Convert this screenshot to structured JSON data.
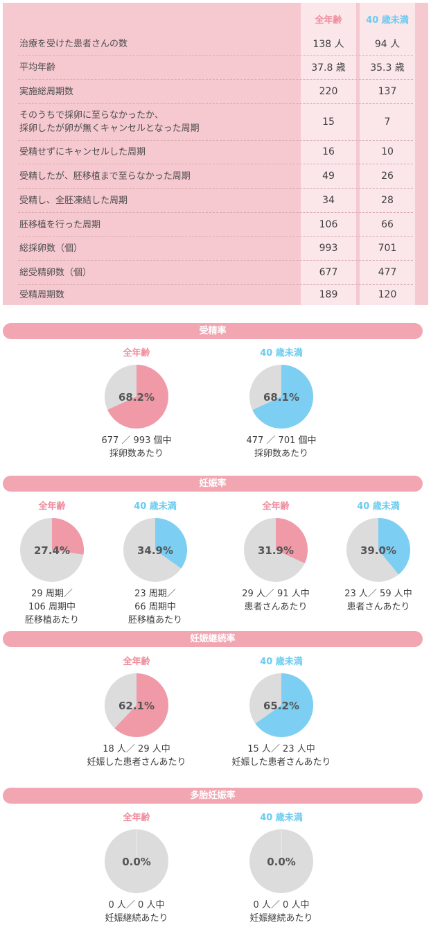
{
  "table": {
    "headers": {
      "all_ages": "全年齢",
      "under40": "40 歳未満"
    },
    "rows": [
      {
        "label": "治療を受けた患者さんの数",
        "all": "138 人",
        "u40": "94 人"
      },
      {
        "label": "平均年齢",
        "all": "37.8 歳",
        "u40": "35.3 歳"
      },
      {
        "label": "実施総周期数",
        "all": "220",
        "u40": "137"
      },
      {
        "label": "そのうちで採卵に至らなかったか、\n採卵したが卵が無くキャンセルとなった周期",
        "all": "15",
        "u40": "7"
      },
      {
        "label": "受精せずにキャンセルした周期",
        "all": "16",
        "u40": "10"
      },
      {
        "label": "受精したが、胚移植まで至らなかった周期",
        "all": "49",
        "u40": "26"
      },
      {
        "label": "受精し、全胚凍結した周期",
        "all": "34",
        "u40": "28"
      },
      {
        "label": "胚移植を行った周期",
        "all": "106",
        "u40": "66"
      },
      {
        "label": "総採卵数（個）",
        "all": "993",
        "u40": "701"
      },
      {
        "label": "総受精卵数（個）",
        "all": "677",
        "u40": "477"
      },
      {
        "label": "受精周期数",
        "all": "189",
        "u40": "120"
      }
    ]
  },
  "colors": {
    "pink": "#f09aa8",
    "blue": "#7ccff3",
    "gray": "#dcdcdc"
  },
  "chart_data": [
    {
      "type": "pie",
      "section": "受精率",
      "group": "全年齢",
      "color": "pink",
      "percent": 68.2,
      "percent_label": "68.2%",
      "note": "677 ／ 993 個中\n採卵数あたり"
    },
    {
      "type": "pie",
      "section": "受精率",
      "group": "40 歳未満",
      "color": "blue",
      "percent": 68.1,
      "percent_label": "68.1%",
      "note": "477 ／ 701 個中\n採卵数あたり"
    },
    {
      "type": "pie",
      "section": "妊娠率",
      "group": "全年齢",
      "color": "pink",
      "percent": 27.4,
      "percent_label": "27.4%",
      "note": "29 周期／\n106 周期中\n胚移植あたり"
    },
    {
      "type": "pie",
      "section": "妊娠率",
      "group": "40 歳未満",
      "color": "blue",
      "percent": 34.9,
      "percent_label": "34.9%",
      "note": "23 周期／\n66 周期中\n胚移植あたり"
    },
    {
      "type": "pie",
      "section": "妊娠率",
      "group": "全年齢",
      "color": "pink",
      "percent": 31.9,
      "percent_label": "31.9%",
      "note": "29 人／ 91 人中\n患者さんあたり"
    },
    {
      "type": "pie",
      "section": "妊娠率",
      "group": "40 歳未満",
      "color": "blue",
      "percent": 39.0,
      "percent_label": "39.0%",
      "note": "23 人／ 59 人中\n患者さんあたり"
    },
    {
      "type": "pie",
      "section": "妊娠継続率",
      "group": "全年齢",
      "color": "pink",
      "percent": 62.1,
      "percent_label": "62.1%",
      "note": "18 人／ 29 人中\n妊娠した患者さんあたり"
    },
    {
      "type": "pie",
      "section": "妊娠継続率",
      "group": "40 歳未満",
      "color": "blue",
      "percent": 65.2,
      "percent_label": "65.2%",
      "note": "15 人／ 23 人中\n妊娠した患者さんあたり"
    },
    {
      "type": "pie",
      "section": "多胎妊娠率",
      "group": "全年齢",
      "color": "pink",
      "percent": 0.0,
      "percent_label": "0.0%",
      "note": "0 人／ 0 人中\n妊娠継続あたり"
    },
    {
      "type": "pie",
      "section": "多胎妊娠率",
      "group": "40 歳未満",
      "color": "blue",
      "percent": 0.0,
      "percent_label": "0.0%",
      "note": "0 人／ 0 人中\n妊娠継続あたり"
    }
  ],
  "sections": [
    "受精率",
    "妊娠率",
    "妊娠継続率",
    "多胎妊娠率"
  ]
}
